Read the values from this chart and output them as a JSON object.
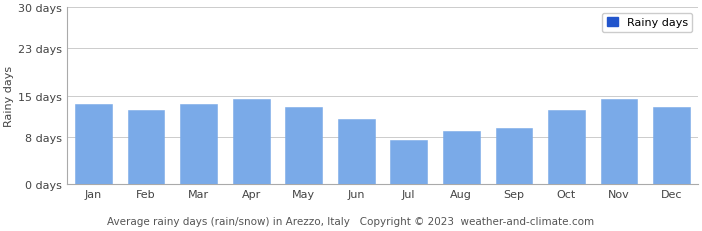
{
  "months": [
    "Jan",
    "Feb",
    "Mar",
    "Apr",
    "May",
    "Jun",
    "Jul",
    "Aug",
    "Sep",
    "Oct",
    "Nov",
    "Dec"
  ],
  "values": [
    13.5,
    12.5,
    13.5,
    14.5,
    13.0,
    11.0,
    7.5,
    9.0,
    9.5,
    12.5,
    14.5,
    13.0
  ],
  "bar_color": "#7aaae8",
  "bar_edge_color": "#7aaae8",
  "ylim": [
    0,
    30
  ],
  "yticks": [
    0,
    8,
    15,
    23,
    30
  ],
  "ytick_labels": [
    "0 days",
    "8 days",
    "15 days",
    "23 days",
    "30 days"
  ],
  "ylabel": "Rainy days",
  "caption": "Average rainy days (rain/snow) in Arezzo, Italy   Copyright © 2023  weather-and-climate.com",
  "legend_label": "Rainy days",
  "legend_color": "#2255cc",
  "bg_color": "#ffffff",
  "grid_color": "#cccccc",
  "ylabel_fontsize": 8,
  "tick_fontsize": 8,
  "caption_fontsize": 7.5,
  "legend_fontsize": 8,
  "bar_width": 0.7
}
